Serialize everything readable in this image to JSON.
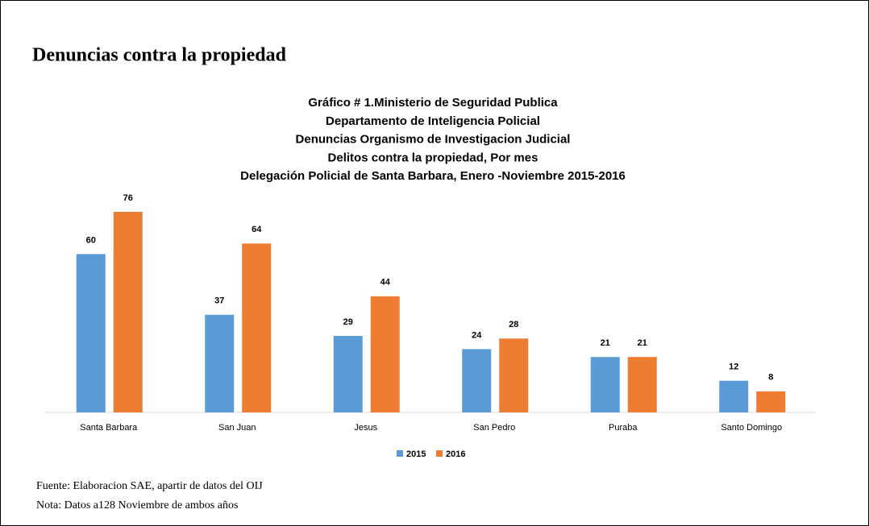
{
  "heading": "Denuncias contra la propiedad",
  "chart_data": {
    "type": "bar",
    "title": [
      "Gráfico # 1.Ministerio de Seguridad Publica",
      "Departamento de Inteligencia Policial",
      "Denuncias Organismo de Investigacion Judicial",
      "Delitos contra la propiedad, Por mes",
      "Delegación Policial de Santa Barbara, Enero -Noviembre 2015-2016"
    ],
    "categories": [
      "Santa Barbara",
      "San Juan",
      "Jesus",
      "San Pedro",
      "Puraba",
      "Santo Domingo"
    ],
    "series": [
      {
        "name": "2015",
        "color": "#5b9bd5",
        "values": [
          60,
          37,
          29,
          24,
          21,
          12
        ]
      },
      {
        "name": "2016",
        "color": "#ed7d31",
        "values": [
          76,
          64,
          44,
          28,
          21,
          8
        ]
      }
    ],
    "legend": "bottom"
  },
  "notes": [
    "Fuente: Elaboracion SAE, apartir de datos del  OIJ",
    "Nota: Datos a128 Noviembre de ambos años"
  ]
}
